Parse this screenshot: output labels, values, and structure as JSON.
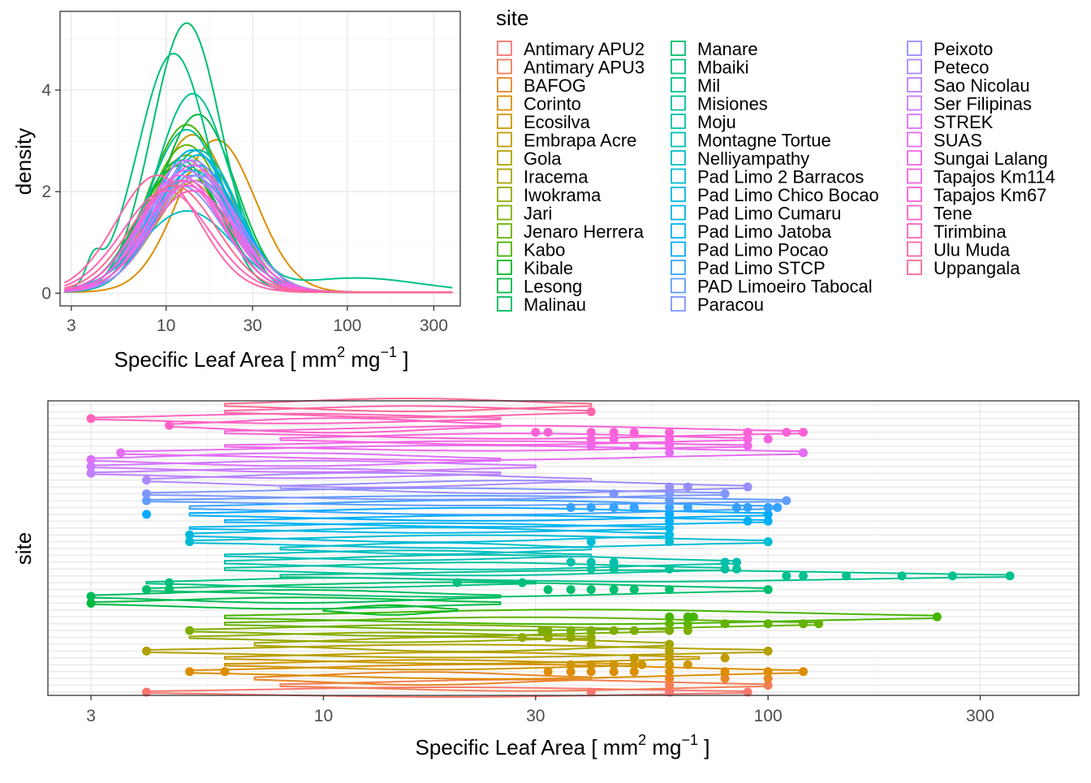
{
  "chart_data": [
    {
      "type": "density",
      "xlabel": "Specific Leaf Area [ mm",
      "xlabel_sup1": "2",
      "xlabel_mid": " mg",
      "xlabel_sup2": "−1",
      "xlabel_end": " ]",
      "ylabel": "density",
      "x_scale": "log10",
      "xlim": [
        2.6,
        420
      ],
      "ylim": [
        -0.25,
        5.55
      ],
      "x_ticks": [
        3,
        10,
        30,
        100,
        300
      ],
      "x_tick_labels": [
        "3",
        "10",
        "30",
        "100",
        "300"
      ],
      "y_ticks": [
        0,
        2,
        4
      ],
      "y_tick_labels": [
        "0",
        "2",
        "4"
      ],
      "grid": true,
      "series_source": "log-normal density per site; mode_sla and peak_density read from the curves",
      "series": [
        {
          "site": "Antimary APU2",
          "mode_sla": 14,
          "peak": 2.3
        },
        {
          "site": "Antimary APU3",
          "mode_sla": 13,
          "peak": 2.2
        },
        {
          "site": "BAFOG",
          "mode_sla": 15,
          "peak": 2.4
        },
        {
          "site": "Corinto",
          "mode_sla": 19,
          "peak": 3.0
        },
        {
          "site": "Ecosilva",
          "mode_sla": 15,
          "peak": 2.8
        },
        {
          "site": "Embrapa Acre",
          "mode_sla": 14,
          "peak": 3.1
        },
        {
          "site": "Gola",
          "mode_sla": 13,
          "peak": 2.6
        },
        {
          "site": "Iracema",
          "mode_sla": 15,
          "peak": 2.2
        },
        {
          "site": "Iwokrama",
          "mode_sla": 13,
          "peak": 2.7
        },
        {
          "site": "Jari",
          "mode_sla": 14,
          "peak": 2.0
        },
        {
          "site": "Jenaro Herrera",
          "mode_sla": 13,
          "peak": 2.9
        },
        {
          "site": "Kabo",
          "mode_sla": 13,
          "peak": 3.3
        },
        {
          "site": "Kibale",
          "mode_sla": 12,
          "peak": 2.5
        },
        {
          "site": "Lesong",
          "mode_sla": 15,
          "peak": 3.5
        },
        {
          "site": "Malinau",
          "mode_sla": 12,
          "peak": 2.6
        },
        {
          "site": "Manare",
          "mode_sla": 13,
          "peak": 5.3
        },
        {
          "site": "Mbaiki",
          "mode_sla": 11,
          "peak": 4.7
        },
        {
          "site": "Mil",
          "mode_sla": 14,
          "peak": 3.9
        },
        {
          "site": "Misiones",
          "mode_sla": 13,
          "peak": 3.2
        },
        {
          "site": "Moju",
          "mode_sla": 15,
          "peak": 2.8
        },
        {
          "site": "Montagne Tortue",
          "mode_sla": 14,
          "peak": 2.5
        },
        {
          "site": "Nelliyampathy",
          "mode_sla": 13,
          "peak": 1.6
        },
        {
          "site": "Pad Limo 2 Barracos",
          "mode_sla": 14,
          "peak": 2.4
        },
        {
          "site": "Pad Limo Chico Bocao",
          "mode_sla": 15,
          "peak": 2.7
        },
        {
          "site": "Pad Limo Cumaru",
          "mode_sla": 13,
          "peak": 2.6
        },
        {
          "site": "Pad Limo Jatoba",
          "mode_sla": 14,
          "peak": 2.8
        },
        {
          "site": "Pad Limo Pocao",
          "mode_sla": 15,
          "peak": 2.5
        },
        {
          "site": "Pad Limo STCP",
          "mode_sla": 13,
          "peak": 2.4
        },
        {
          "site": "PAD Limoeiro Tabocal",
          "mode_sla": 14,
          "peak": 2.3
        },
        {
          "site": "Paracou",
          "mode_sla": 12,
          "peak": 2.1
        },
        {
          "site": "Peixoto",
          "mode_sla": 14,
          "peak": 2.6
        },
        {
          "site": "Peteco",
          "mode_sla": 15,
          "peak": 2.3
        },
        {
          "site": "Sao Nicolau",
          "mode_sla": 13,
          "peak": 2.4
        },
        {
          "site": "Ser Filipinas",
          "mode_sla": 14,
          "peak": 2.2
        },
        {
          "site": "STREK",
          "mode_sla": 13,
          "peak": 2.6
        },
        {
          "site": "SUAS",
          "mode_sla": 14,
          "peak": 2.5
        },
        {
          "site": "Sungai Lalang",
          "mode_sla": 12,
          "peak": 2.3
        },
        {
          "site": "Tapajos Km114",
          "mode_sla": 13,
          "peak": 2.1
        },
        {
          "site": "Tapajos Km67",
          "mode_sla": 14,
          "peak": 2.0
        },
        {
          "site": "Tene",
          "mode_sla": 12,
          "peak": 2.2
        },
        {
          "site": "Tirimbina",
          "mode_sla": 10,
          "peak": 2.0
        },
        {
          "site": "Ulu Muda",
          "mode_sla": 9,
          "peak": 2.3
        },
        {
          "site": "Uppangala",
          "mode_sla": 11,
          "peak": 2.1
        }
      ]
    },
    {
      "type": "violin",
      "xlabel": "Specific Leaf Area [ mm",
      "xlabel_sup1": "2",
      "xlabel_mid": " mg",
      "xlabel_sup2": "−1",
      "xlabel_end": " ]",
      "ylabel": "site",
      "x_scale": "log10",
      "xlim": [
        2.4,
        500
      ],
      "x_ticks": [
        3,
        10,
        30,
        100,
        300
      ],
      "x_tick_labels": [
        "3",
        "10",
        "30",
        "100",
        "300"
      ],
      "grid": true,
      "sites": [
        {
          "site": "Antimary APU2",
          "lo": 4,
          "hi": 90,
          "outliers": [
            4,
            40,
            60,
            90
          ]
        },
        {
          "site": "Antimary APU3",
          "lo": 8,
          "hi": 100,
          "outliers": [
            60,
            100
          ]
        },
        {
          "site": "BAFOG",
          "lo": 7,
          "hi": 40,
          "outliers": [
            60,
            80,
            100
          ]
        },
        {
          "site": "Corinto",
          "lo": 5,
          "hi": 120,
          "outliers": [
            5,
            6,
            32,
            36,
            40,
            45,
            50,
            60,
            80,
            100,
            120
          ]
        },
        {
          "site": "Ecosilva",
          "lo": 6,
          "hi": 50,
          "outliers": [
            36,
            40,
            45,
            50,
            52,
            60,
            66
          ]
        },
        {
          "site": "Embrapa Acre",
          "lo": 6,
          "hi": 70,
          "outliers": [
            50,
            60,
            80
          ]
        },
        {
          "site": "Gola",
          "lo": 4,
          "hi": 100,
          "outliers": [
            4,
            60,
            100
          ]
        },
        {
          "site": "Iracema",
          "lo": 7,
          "hi": 60,
          "outliers": [
            40,
            60
          ]
        },
        {
          "site": "Iwokrama",
          "lo": 5,
          "hi": 40,
          "outliers": [
            28,
            32,
            36,
            40
          ]
        },
        {
          "site": "Jari",
          "lo": 5,
          "hi": 60,
          "outliers": [
            5,
            31,
            32,
            36,
            40,
            45,
            50,
            60,
            66
          ]
        },
        {
          "site": "Jenaro Herrera",
          "lo": 6,
          "hi": 130,
          "outliers": [
            60,
            66,
            80,
            100,
            120,
            130
          ]
        },
        {
          "site": "Kabo",
          "lo": 6,
          "hi": 240,
          "outliers": [
            60,
            66,
            68,
            240
          ]
        },
        {
          "site": "Kibale",
          "lo": 10,
          "hi": 20,
          "outliers": []
        },
        {
          "site": "Lesong",
          "lo": 3,
          "hi": 25,
          "outliers": [
            3
          ]
        },
        {
          "site": "Malinau",
          "lo": 3,
          "hi": 25,
          "outliers": [
            3
          ]
        },
        {
          "site": "Manare",
          "lo": 4,
          "hi": 100,
          "outliers": [
            4,
            4.5,
            32,
            36,
            40,
            45,
            50,
            60,
            100
          ]
        },
        {
          "site": "Mbaiki",
          "lo": 4,
          "hi": 30,
          "outliers": [
            4.5,
            20,
            28
          ]
        },
        {
          "site": "Mil",
          "lo": 8,
          "hi": 350,
          "outliers": [
            110,
            120,
            150,
            200,
            260,
            350
          ]
        },
        {
          "site": "Misiones",
          "lo": 6,
          "hi": 80,
          "outliers": [
            40,
            45,
            60,
            80,
            85
          ]
        },
        {
          "site": "Moju",
          "lo": 6,
          "hi": 85,
          "outliers": [
            36,
            40,
            45,
            80,
            85
          ]
        },
        {
          "site": "Montagne Tortue",
          "lo": 6,
          "hi": 40,
          "outliers": []
        },
        {
          "site": "Nelliyampathy",
          "lo": 8,
          "hi": 40,
          "outliers": []
        },
        {
          "site": "Pad Limo 2 Barracos",
          "lo": 5,
          "hi": 100,
          "outliers": [
            5,
            40,
            60,
            100
          ]
        },
        {
          "site": "Pad Limo Chico Bocao",
          "lo": 5,
          "hi": 60,
          "outliers": [
            5,
            60
          ]
        },
        {
          "site": "Pad Limo Cumaru",
          "lo": 5,
          "hi": 60,
          "outliers": [
            60
          ]
        },
        {
          "site": "Pad Limo Jatoba",
          "lo": 6,
          "hi": 100,
          "outliers": [
            60,
            90,
            100
          ]
        },
        {
          "site": "Pad Limo Pocao",
          "lo": 5,
          "hi": 100,
          "outliers": [
            4,
            60,
            100
          ]
        },
        {
          "site": "Pad Limo STCP",
          "lo": 5,
          "hi": 105,
          "outliers": [
            36,
            40,
            45,
            50,
            60,
            66,
            85,
            90,
            100,
            105
          ]
        },
        {
          "site": "PAD Limoeiro Tabocal",
          "lo": 4,
          "hi": 110,
          "outliers": [
            4,
            60,
            110
          ]
        },
        {
          "site": "Paracou",
          "lo": 4,
          "hi": 80,
          "outliers": [
            4,
            45,
            60,
            80
          ]
        },
        {
          "site": "Peixoto",
          "lo": 8,
          "hi": 90,
          "outliers": [
            60,
            66,
            90
          ]
        },
        {
          "site": "Peteco",
          "lo": 4,
          "hi": 40,
          "outliers": [
            4
          ]
        },
        {
          "site": "Sao Nicolau",
          "lo": 3,
          "hi": 25,
          "outliers": [
            3
          ]
        },
        {
          "site": "Ser Filipinas",
          "lo": 3,
          "hi": 30,
          "outliers": [
            3
          ]
        },
        {
          "site": "STREK",
          "lo": 3,
          "hi": 25,
          "outliers": [
            3
          ]
        },
        {
          "site": "SUAS",
          "lo": 3.5,
          "hi": 120,
          "outliers": [
            3.5,
            60,
            120
          ]
        },
        {
          "site": "Sungai Lalang",
          "lo": 6,
          "hi": 90,
          "outliers": [
            40,
            50,
            60,
            90
          ]
        },
        {
          "site": "Tapajos Km114",
          "lo": 8,
          "hi": 90,
          "outliers": [
            40,
            45,
            60,
            90,
            100
          ]
        },
        {
          "site": "Tapajos Km67",
          "lo": 6,
          "hi": 120,
          "outliers": [
            30,
            32,
            40,
            45,
            50,
            60,
            90,
            110,
            120
          ]
        },
        {
          "site": "Tene",
          "lo": 4.5,
          "hi": 25,
          "outliers": [
            4.5
          ]
        },
        {
          "site": "Tirimbina",
          "lo": 3,
          "hi": 25,
          "outliers": [
            3
          ]
        },
        {
          "site": "Ulu Muda",
          "lo": 6,
          "hi": 40,
          "outliers": [
            40
          ]
        },
        {
          "site": "Uppangala",
          "lo": 6,
          "hi": 40,
          "outliers": []
        }
      ]
    }
  ],
  "legend": {
    "title": "site",
    "items": [
      {
        "label": "Antimary APU2",
        "color": "#F8766D"
      },
      {
        "label": "Antimary APU3",
        "color": "#F27D53"
      },
      {
        "label": "BAFOG",
        "color": "#E88526"
      },
      {
        "label": "Corinto",
        "color": "#DD8D00"
      },
      {
        "label": "Ecosilva",
        "color": "#D09400"
      },
      {
        "label": "Embrapa Acre",
        "color": "#C29A00"
      },
      {
        "label": "Gola",
        "color": "#B3A000"
      },
      {
        "label": "Iracema",
        "color": "#A3A500"
      },
      {
        "label": "Iwokrama",
        "color": "#91AA00"
      },
      {
        "label": "Jari",
        "color": "#7CAE00"
      },
      {
        "label": "Jenaro Herrera",
        "color": "#64B200"
      },
      {
        "label": "Kabo",
        "color": "#45B500"
      },
      {
        "label": "Kibale",
        "color": "#00B81F"
      },
      {
        "label": "Lesong",
        "color": "#00BA42"
      },
      {
        "label": "Malinau",
        "color": "#00BC59"
      },
      {
        "label": "Manare",
        "color": "#00BE6C"
      },
      {
        "label": "Mbaiki",
        "color": "#00BF7D"
      },
      {
        "label": "Mil",
        "color": "#00C08D"
      },
      {
        "label": "Misiones",
        "color": "#00C19C"
      },
      {
        "label": "Moju",
        "color": "#00C0AB"
      },
      {
        "label": "Montagne Tortue",
        "color": "#00BFB9"
      },
      {
        "label": "Nelliyampathy",
        "color": "#00BEC6"
      },
      {
        "label": "Pad Limo 2 Barracos",
        "color": "#00BCD3"
      },
      {
        "label": "Pad Limo Chico Bocao",
        "color": "#00B9E0"
      },
      {
        "label": "Pad Limo Cumaru",
        "color": "#00B5EC"
      },
      {
        "label": "Pad Limo Jatoba",
        "color": "#00B0F6"
      },
      {
        "label": "Pad Limo Pocao",
        "color": "#00ABFD"
      },
      {
        "label": "Pad Limo STCP",
        "color": "#35A2FF"
      },
      {
        "label": "PAD Limoeiro Tabocal",
        "color": "#619CFF"
      },
      {
        "label": "Paracou",
        "color": "#7F96FF"
      },
      {
        "label": "Peixoto",
        "color": "#978EFF"
      },
      {
        "label": "Peteco",
        "color": "#AC87FF"
      },
      {
        "label": "Sao Nicolau",
        "color": "#BE80FF"
      },
      {
        "label": "Ser Filipinas",
        "color": "#CD79FF"
      },
      {
        "label": "STREK",
        "color": "#DB72FB"
      },
      {
        "label": "SUAS",
        "color": "#E76BF3"
      },
      {
        "label": "Sungai Lalang",
        "color": "#F066EA"
      },
      {
        "label": "Tapajos Km114",
        "color": "#F763E0"
      },
      {
        "label": "Tapajos Km67",
        "color": "#FC61D5"
      },
      {
        "label": "Tene",
        "color": "#FF61C9"
      },
      {
        "label": "Tirimbina",
        "color": "#FF63BC"
      },
      {
        "label": "Ulu Muda",
        "color": "#FF66A8"
      },
      {
        "label": "Uppangala",
        "color": "#FD6A92"
      }
    ]
  },
  "colors": {
    "panel_border": "#333333",
    "grid_major": "#EBEBEB",
    "grid_minor": "#F5F5F5",
    "tick_text": "#4D4D4D",
    "axis_title": "#000000"
  }
}
